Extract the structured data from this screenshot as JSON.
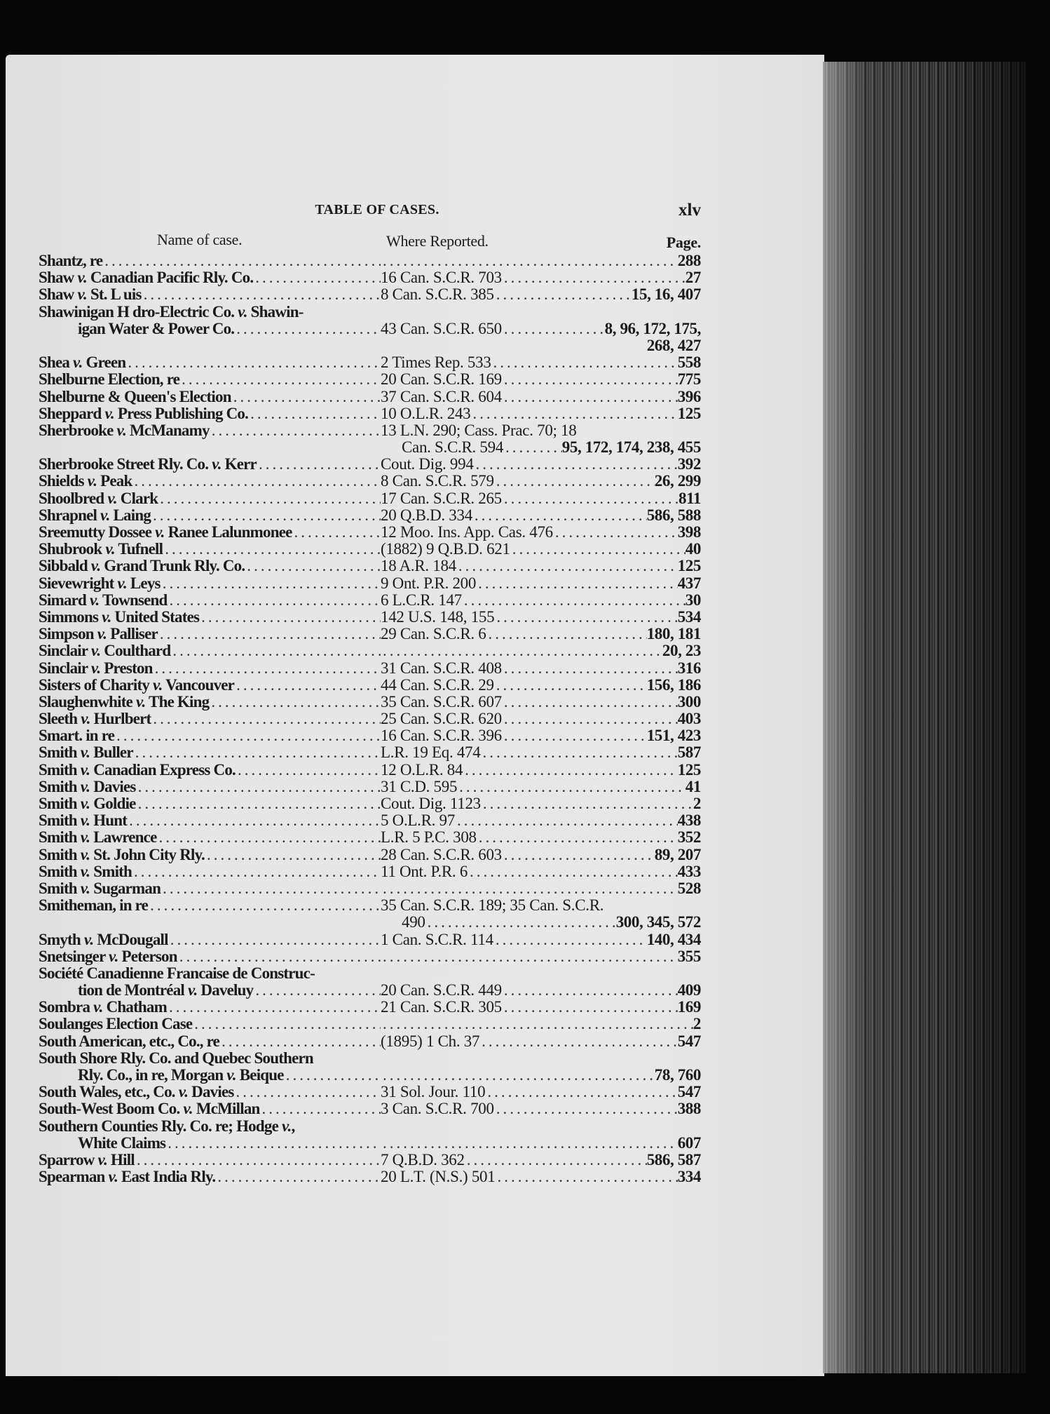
{
  "header": {
    "title": "TABLE OF CASES.",
    "folio": "xlv"
  },
  "columns": {
    "name": "Name of case.",
    "where": "Where Reported.",
    "page": "Page."
  },
  "rows": [
    {
      "name": "Shantz, re",
      "where": "",
      "pages": "288"
    },
    {
      "name": "Shaw v. Canadian Pacific Rly. Co.",
      "where": "16 Can. S.C.R. 703",
      "pages": "27"
    },
    {
      "name": "Shaw v. St. L uis",
      "where": "8 Can. S.C.R. 385",
      "pages": "15, 16, 407"
    },
    {
      "name": "Shawinigan H dro-Electric Co. v. Shawin-",
      "where": "",
      "pages": "",
      "open": true
    },
    {
      "name": "igan Water & Power Co.",
      "cont": true,
      "where": "43 Can. S.C.R. 650",
      "pages": "8, 96, 172, 175,"
    },
    {
      "name": "",
      "where": "",
      "pages": "268, 427"
    },
    {
      "name": "Shea v. Green",
      "where": "2 Times Rep. 533",
      "pages": "558"
    },
    {
      "name": "Shelburne Election, re",
      "where": "20 Can. S.C.R. 169",
      "pages": "775"
    },
    {
      "name": "Shelburne & Queen's Election",
      "where": "37 Can. S.C.R. 604",
      "pages": "396"
    },
    {
      "name": "Sheppard v. Press Publishing Co.",
      "where": "10 O.L.R. 243",
      "pages": "125"
    },
    {
      "name": "Sherbrooke v. McManamy",
      "where": "13 L.N. 290; Cass. Prac. 70; 18",
      "pages": ""
    },
    {
      "name": "",
      "wcont": true,
      "where": "Can. S.C.R. 594",
      "pages": "95, 172, 174, 238, 455"
    },
    {
      "name": "Sherbrooke Street Rly. Co. v. Kerr",
      "where": "Cout. Dig. 994",
      "pages": "392"
    },
    {
      "name": "Shields v. Peak",
      "where": "8 Can. S.C.R. 579",
      "pages": "26, 299"
    },
    {
      "name": "Shoolbred v. Clark",
      "where": "17 Can. S.C.R. 265",
      "pages": "811"
    },
    {
      "name": "Shrapnel v. Laing",
      "where": "20 Q.B.D. 334",
      "pages": "586, 588"
    },
    {
      "name": "Sreemutty Dossee v. Ranee Lalunmonee",
      "where": "12 Moo. Ins. App. Cas. 476",
      "pages": "398"
    },
    {
      "name": "Shubrook v. Tufnell",
      "where": "(1882) 9 Q.B.D. 621",
      "pages": "40"
    },
    {
      "name": "Sibbald v. Grand Trunk Rly. Co.",
      "where": "18 A.R. 184",
      "pages": "125"
    },
    {
      "name": "Sievewright v. Leys",
      "where": "9 Ont. P.R. 200",
      "pages": "437"
    },
    {
      "name": "Simard v. Townsend",
      "where": "6 L.C.R. 147",
      "pages": "30"
    },
    {
      "name": "Simmons v. United States",
      "where": "142 U.S. 148, 155",
      "pages": "534"
    },
    {
      "name": "Simpson v. Palliser",
      "where": "29 Can. S.C.R. 6",
      "pages": "180, 181"
    },
    {
      "name": "Sinclair v. Coulthard",
      "where": "",
      "pages": "20, 23"
    },
    {
      "name": "Sinclair v. Preston",
      "where": "31 Can. S.C.R. 408",
      "pages": "316"
    },
    {
      "name": "Sisters of Charity v. Vancouver",
      "where": "44 Can. S.C.R. 29",
      "pages": "156, 186"
    },
    {
      "name": "Slaughenwhite v. The King",
      "where": "35 Can. S.C.R. 607",
      "pages": "300"
    },
    {
      "name": "Sleeth v. Hurlbert",
      "where": "25 Can. S.C.R. 620",
      "pages": "403"
    },
    {
      "name": "Smart. in re",
      "where": "16 Can. S.C.R. 396",
      "pages": "151, 423"
    },
    {
      "name": "Smith v. Buller",
      "where": "L.R. 19 Eq. 474",
      "pages": "587"
    },
    {
      "name": "Smith v. Canadian Express Co.",
      "where": "12 O.L.R. 84",
      "pages": "125"
    },
    {
      "name": "Smith v. Davies",
      "where": "31 C.D. 595",
      "pages": "41"
    },
    {
      "name": "Smith v. Goldie",
      "where": "Cout. Dig. 1123",
      "pages": "2"
    },
    {
      "name": "Smith v. Hunt",
      "where": "5 O.L.R. 97",
      "pages": "438"
    },
    {
      "name": "Smith v. Lawrence",
      "where": "L.R. 5 P.C. 308",
      "pages": "352"
    },
    {
      "name": "Smith v. St. John City Rly.",
      "where": "28 Can. S.C.R. 603",
      "pages": "89, 207"
    },
    {
      "name": "Smith v. Smith",
      "where": "11 Ont. P.R. 6",
      "pages": "433"
    },
    {
      "name": "Smith v. Sugarman",
      "where": "",
      "pages": "528"
    },
    {
      "name": "Smitheman, in re",
      "where": "35 Can. S.C.R. 189; 35 Can. S.C.R.",
      "pages": ""
    },
    {
      "name": "",
      "wcont": true,
      "where": "490",
      "pages": "300, 345, 572"
    },
    {
      "name": "Smyth v. McDougall",
      "where": "1 Can. S.C.R. 114",
      "pages": "140, 434"
    },
    {
      "name": "Snetsinger v. Peterson",
      "where": "",
      "pages": "355"
    },
    {
      "name": "Société Canadienne Francaise de Construc-",
      "where": "",
      "pages": "",
      "open": true
    },
    {
      "name": "tion de Montréal v. Daveluy",
      "cont": true,
      "where": "20 Can. S.C.R. 449",
      "pages": "409"
    },
    {
      "name": "Sombra v. Chatham",
      "where": "21 Can. S.C.R. 305",
      "pages": "169"
    },
    {
      "name": "Soulanges Election Case",
      "where": "",
      "pages": "2"
    },
    {
      "name": "South American, etc., Co., re",
      "where": "(1895) 1 Ch. 37",
      "pages": "547"
    },
    {
      "name": "South Shore Rly. Co. and Quebec Southern",
      "where": "",
      "pages": "",
      "open": true
    },
    {
      "name": "Rly. Co., in re, Morgan v. Beique",
      "cont": true,
      "where": "",
      "pages": "78, 760"
    },
    {
      "name": "South Wales, etc., Co. v. Davies",
      "where": "31 Sol. Jour. 110",
      "pages": "547"
    },
    {
      "name": "South-West Boom Co. v. McMillan",
      "where": "3 Can. S.C.R. 700",
      "pages": "388"
    },
    {
      "name": "Southern Counties Rly. Co. re; Hodge v.,",
      "where": "",
      "pages": "",
      "open": true
    },
    {
      "name": "White Claims",
      "cont": true,
      "where": "",
      "pages": "607"
    },
    {
      "name": "Sparrow v. Hill",
      "where": "7 Q.B.D. 362",
      "pages": "586, 587"
    },
    {
      "name": "Spearman v. East India Rly.",
      "where": "20 L.T. (N.S.) 501",
      "pages": "334"
    }
  ]
}
